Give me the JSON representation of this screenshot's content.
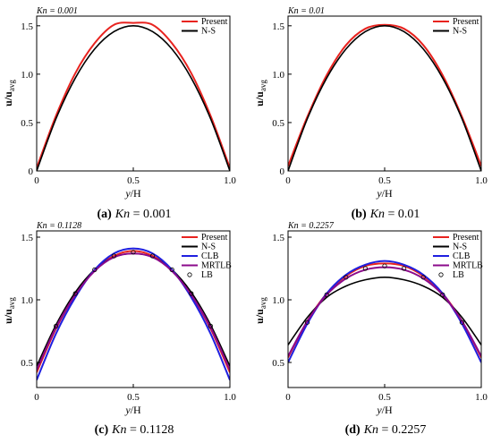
{
  "chart_data": [
    {
      "type": "line",
      "kn_label": "Kn = 0.001",
      "caption_letter": "(a)",
      "caption_kn": "Kn = 0.001",
      "xlabel": "y/H",
      "ylabel": "u/u_avg",
      "xlim": [
        0,
        1
      ],
      "ylim": [
        0,
        1.6
      ],
      "xticks": [
        "0",
        "0.5",
        "1.0"
      ],
      "yticks": [
        "0",
        "0.5",
        "1.0",
        "1.5"
      ],
      "ytick_values": [
        0,
        0.5,
        1.0,
        1.5
      ],
      "legend": [
        "Present",
        "N-S"
      ],
      "legend_position": "top-right",
      "series": [
        {
          "name": "Present",
          "color": "#e8231f",
          "marker": "line",
          "x": [
            0,
            0.1,
            0.2,
            0.3,
            0.4,
            0.5,
            0.6,
            0.7,
            0.8,
            0.9,
            1.0
          ],
          "y": [
            0.03,
            0.57,
            1.01,
            1.32,
            1.51,
            1.53,
            1.51,
            1.32,
            1.01,
            0.57,
            0.03
          ]
        },
        {
          "name": "N-S",
          "color": "#000000",
          "marker": "line",
          "x": [
            0,
            0.1,
            0.2,
            0.3,
            0.4,
            0.5,
            0.6,
            0.7,
            0.8,
            0.9,
            1.0
          ],
          "y": [
            0.0,
            0.54,
            0.96,
            1.26,
            1.44,
            1.5,
            1.44,
            1.26,
            0.96,
            0.54,
            0.0
          ]
        }
      ]
    },
    {
      "type": "line",
      "kn_label": "Kn = 0.01",
      "caption_letter": "(b)",
      "caption_kn": "Kn = 0.01",
      "xlabel": "y/H",
      "ylabel": "u/u_avg",
      "xlim": [
        0,
        1
      ],
      "ylim": [
        0,
        1.6
      ],
      "xticks": [
        "0",
        "0.5",
        "1.0"
      ],
      "yticks": [
        "0",
        "0.5",
        "1.0",
        "1.5"
      ],
      "ytick_values": [
        0,
        0.5,
        1.0,
        1.5
      ],
      "legend": [
        "Present",
        "N-S"
      ],
      "legend_position": "top-right",
      "series": [
        {
          "name": "Present",
          "color": "#e8231f",
          "marker": "line",
          "x": [
            0,
            0.1,
            0.2,
            0.3,
            0.4,
            0.5,
            0.6,
            0.7,
            0.8,
            0.9,
            1.0
          ],
          "y": [
            0.05,
            0.56,
            0.99,
            1.3,
            1.47,
            1.51,
            1.47,
            1.3,
            0.99,
            0.56,
            0.05
          ]
        },
        {
          "name": "N-S",
          "color": "#000000",
          "marker": "line",
          "x": [
            0,
            0.1,
            0.2,
            0.3,
            0.4,
            0.5,
            0.6,
            0.7,
            0.8,
            0.9,
            1.0
          ],
          "y": [
            0.0,
            0.54,
            0.96,
            1.26,
            1.44,
            1.5,
            1.44,
            1.26,
            0.96,
            0.54,
            0.0
          ]
        }
      ]
    },
    {
      "type": "line",
      "kn_label": "Kn = 0.1128",
      "caption_letter": "(c)",
      "caption_kn": "Kn = 0.1128",
      "xlabel": "y/H",
      "ylabel": "u/u_avg",
      "xlim": [
        0,
        1
      ],
      "ylim": [
        0.3,
        1.55
      ],
      "xticks": [
        "0",
        "0.5",
        "1.0"
      ],
      "yticks": [
        "0.5",
        "1.0",
        "1.5"
      ],
      "ytick_values": [
        0.5,
        1.0,
        1.5
      ],
      "legend": [
        "Present",
        "N-S",
        "CLB",
        "MRTLB",
        "LB"
      ],
      "legend_position": "top-right",
      "series": [
        {
          "name": "Present",
          "color": "#e8231f",
          "marker": "line",
          "x": [
            0,
            0.1,
            0.2,
            0.3,
            0.4,
            0.5,
            0.6,
            0.7,
            0.8,
            0.9,
            1.0
          ],
          "y": [
            0.42,
            0.77,
            1.04,
            1.24,
            1.35,
            1.39,
            1.35,
            1.24,
            1.04,
            0.77,
            0.42
          ]
        },
        {
          "name": "N-S",
          "color": "#000000",
          "marker": "line",
          "x": [
            0,
            0.1,
            0.2,
            0.3,
            0.4,
            0.5,
            0.6,
            0.7,
            0.8,
            0.9,
            1.0
          ],
          "y": [
            0.47,
            0.8,
            1.06,
            1.24,
            1.34,
            1.37,
            1.34,
            1.24,
            1.06,
            0.8,
            0.47
          ]
        },
        {
          "name": "CLB",
          "color": "#1f1fe0",
          "marker": "line",
          "x": [
            0,
            0.1,
            0.2,
            0.3,
            0.4,
            0.5,
            0.6,
            0.7,
            0.8,
            0.9,
            1.0
          ],
          "y": [
            0.36,
            0.73,
            1.02,
            1.24,
            1.37,
            1.41,
            1.37,
            1.24,
            1.02,
            0.73,
            0.36
          ]
        },
        {
          "name": "MRTLB",
          "color": "#8b0a8b",
          "marker": "line",
          "x": [
            0,
            0.1,
            0.2,
            0.3,
            0.4,
            0.5,
            0.6,
            0.7,
            0.8,
            0.9,
            1.0
          ],
          "y": [
            0.44,
            0.78,
            1.04,
            1.23,
            1.34,
            1.37,
            1.34,
            1.23,
            1.04,
            0.78,
            0.44
          ]
        },
        {
          "name": "LB",
          "color": "#000000",
          "marker": "circle",
          "x": [
            0.1,
            0.2,
            0.3,
            0.4,
            0.5,
            0.6,
            0.7,
            0.8,
            0.9
          ],
          "y": [
            0.79,
            1.05,
            1.24,
            1.35,
            1.38,
            1.35,
            1.24,
            1.05,
            0.79
          ]
        }
      ]
    },
    {
      "type": "line",
      "kn_label": "Kn = 0.2257",
      "caption_letter": "(d)",
      "caption_kn": "Kn = 0.2257",
      "xlabel": "y/H",
      "ylabel": "u/u_avg",
      "xlim": [
        0,
        1
      ],
      "ylim": [
        0.3,
        1.55
      ],
      "xticks": [
        "0",
        "0.5",
        "1.0"
      ],
      "yticks": [
        "0.5",
        "1.0",
        "1.5"
      ],
      "ytick_values": [
        0.5,
        1.0,
        1.5
      ],
      "legend": [
        "Present",
        "N-S",
        "CLB",
        "MRTLB",
        "LB"
      ],
      "legend_position": "top-right",
      "series": [
        {
          "name": "Present",
          "color": "#e8231f",
          "marker": "line",
          "x": [
            0,
            0.1,
            0.2,
            0.3,
            0.4,
            0.5,
            0.6,
            0.7,
            0.8,
            0.9,
            1.0
          ],
          "y": [
            0.54,
            0.83,
            1.05,
            1.19,
            1.27,
            1.29,
            1.27,
            1.19,
            1.05,
            0.83,
            0.54
          ]
        },
        {
          "name": "N-S",
          "color": "#000000",
          "marker": "line",
          "x": [
            0,
            0.1,
            0.2,
            0.3,
            0.4,
            0.5,
            0.6,
            0.7,
            0.8,
            0.9,
            1.0
          ],
          "y": [
            0.64,
            0.86,
            1.02,
            1.11,
            1.16,
            1.18,
            1.16,
            1.11,
            1.02,
            0.86,
            0.64
          ]
        },
        {
          "name": "CLB",
          "color": "#1f1fe0",
          "marker": "line",
          "x": [
            0,
            0.1,
            0.2,
            0.3,
            0.4,
            0.5,
            0.6,
            0.7,
            0.8,
            0.9,
            1.0
          ],
          "y": [
            0.5,
            0.81,
            1.05,
            1.2,
            1.28,
            1.31,
            1.28,
            1.2,
            1.05,
            0.81,
            0.5
          ]
        },
        {
          "name": "MRTLB",
          "color": "#8b0a8b",
          "marker": "line",
          "x": [
            0,
            0.1,
            0.2,
            0.3,
            0.4,
            0.5,
            0.6,
            0.7,
            0.8,
            0.9,
            1.0
          ],
          "y": [
            0.55,
            0.83,
            1.04,
            1.17,
            1.24,
            1.26,
            1.24,
            1.17,
            1.04,
            0.83,
            0.55
          ]
        },
        {
          "name": "LB",
          "color": "#000000",
          "marker": "circle",
          "x": [
            0.1,
            0.2,
            0.3,
            0.4,
            0.5,
            0.6,
            0.7,
            0.8,
            0.9
          ],
          "y": [
            0.82,
            1.04,
            1.18,
            1.25,
            1.27,
            1.25,
            1.18,
            1.04,
            0.82
          ]
        }
      ]
    }
  ]
}
